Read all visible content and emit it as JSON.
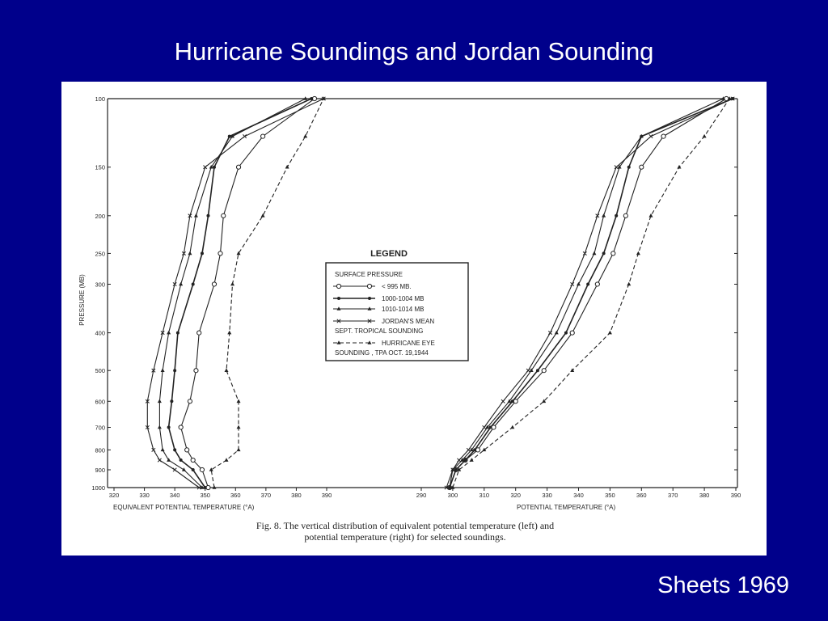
{
  "slide": {
    "title": "Hurricane Soundings and Jordan Sounding",
    "source": "Sheets 1969",
    "background": "#00008b"
  },
  "figure": {
    "caption_line1": "Fig. 8. The vertical distribution of equivalent potential temperature (left) and",
    "caption_line2": "potential temperature (right) for selected soundings."
  },
  "legend": {
    "title": "LEGEND",
    "header": "SURFACE  PRESSURE",
    "entries": [
      {
        "label": "< 995 MB.",
        "marker": "circle",
        "dash": false
      },
      {
        "label": "1000-1004  MB",
        "marker": "dot",
        "dash": false
      },
      {
        "label": "1010-1014  MB",
        "marker": "triangle",
        "dash": false
      },
      {
        "label": "JORDAN'S  MEAN",
        "label2": "SEPT. TROPICAL  SOUNDING",
        "marker": "cross",
        "dash": false
      },
      {
        "label": "HURRICANE  EYE",
        "label2": "SOUNDING , TPA  OCT. 19,1944",
        "marker": "triangle",
        "dash": true
      }
    ]
  },
  "chart_data": [
    {
      "type": "line",
      "title": "",
      "xlabel": "EQUIVALENT  POTENTIAL  TEMPERATURE  (°A)",
      "ylabel": "PRESSURE (MB)",
      "xlim": [
        320,
        390
      ],
      "x_ticks": [
        320,
        330,
        340,
        350,
        360,
        370,
        380,
        390
      ],
      "ylim": [
        1000,
        100
      ],
      "y_scale": "log",
      "y_ticks": [
        100,
        150,
        200,
        250,
        300,
        400,
        500,
        600,
        700,
        800,
        900,
        1000
      ],
      "y": [
        1000,
        900,
        850,
        800,
        700,
        600,
        500,
        400,
        300,
        250,
        200,
        150,
        125,
        100
      ],
      "series": [
        {
          "name": "< 995 MB.",
          "marker": "circle",
          "dash": false,
          "x": [
            351,
            349,
            346,
            344,
            342,
            345,
            347,
            348,
            353,
            355,
            356,
            361,
            369,
            386
          ]
        },
        {
          "name": "1000-1004 MB",
          "marker": "dot",
          "dash": false,
          "x": [
            350,
            346,
            342,
            340,
            338,
            339,
            340,
            341,
            346,
            349,
            351,
            353,
            358,
            385
          ]
        },
        {
          "name": "1010-1014 MB",
          "marker": "triangle",
          "dash": false,
          "x": [
            349,
            343,
            338,
            336,
            335,
            335,
            336,
            338,
            342,
            345,
            347,
            352,
            359,
            383
          ]
        },
        {
          "name": "JORDAN'S MEAN SEPT. TROPICAL SOUNDING",
          "marker": "cross",
          "dash": false,
          "x": [
            348,
            340,
            335,
            333,
            331,
            331,
            333,
            336,
            340,
            343,
            345,
            350,
            363,
            389
          ]
        },
        {
          "name": "HURRICANE EYE SOUNDING , TPA OCT. 19,1944",
          "marker": "triangle",
          "dash": true,
          "x": [
            353,
            352,
            357,
            361,
            361,
            361,
            357,
            358,
            359,
            361,
            369,
            377,
            383,
            389
          ]
        }
      ]
    },
    {
      "type": "line",
      "title": "",
      "xlabel": "POTENTIAL  TEMPERATURE  (°A)",
      "ylabel": "",
      "xlim": [
        290,
        390
      ],
      "x_ticks": [
        290,
        300,
        310,
        320,
        330,
        340,
        350,
        360,
        370,
        380,
        390
      ],
      "ylim": [
        1000,
        100
      ],
      "y_scale": "log",
      "y": [
        1000,
        900,
        850,
        800,
        700,
        600,
        500,
        400,
        300,
        250,
        200,
        150,
        125,
        100
      ],
      "series": [
        {
          "name": "< 995 MB.",
          "marker": "circle",
          "dash": false,
          "x": [
            299,
            301,
            304,
            308,
            313,
            320,
            329,
            338,
            346,
            351,
            355,
            360,
            367,
            387
          ]
        },
        {
          "name": "1000-1004 MB",
          "marker": "dot",
          "dash": false,
          "x": [
            299,
            301,
            304,
            307,
            312,
            319,
            327,
            336,
            343,
            348,
            352,
            356,
            360,
            389
          ]
        },
        {
          "name": "1010-1014 MB",
          "marker": "triangle",
          "dash": false,
          "x": [
            299,
            300,
            303,
            306,
            311,
            318,
            325,
            333,
            340,
            345,
            348,
            353,
            360,
            386
          ]
        },
        {
          "name": "JORDAN'S MEAN SEPT. TROPICAL SOUNDING",
          "marker": "cross",
          "dash": false,
          "x": [
            298,
            300,
            302,
            305,
            310,
            316,
            324,
            331,
            338,
            342,
            346,
            352,
            363,
            389
          ]
        },
        {
          "name": "HURRICANE EYE SOUNDING , TPA OCT. 19,1944",
          "marker": "triangle",
          "dash": true,
          "x": [
            300,
            302,
            306,
            310,
            319,
            329,
            338,
            350,
            356,
            359,
            363,
            372,
            380,
            388
          ]
        }
      ]
    }
  ]
}
